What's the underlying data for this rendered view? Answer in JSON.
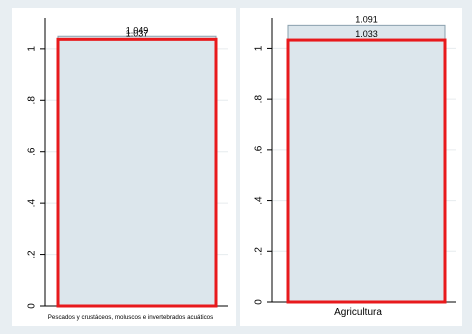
{
  "chart_data": [
    {
      "type": "bar",
      "categories": [
        "Pescados y crustáceos, moluscos e invertebrados acuáticos"
      ],
      "series": [
        {
          "values": [
            1.049
          ]
        },
        {
          "values": [
            1.037
          ]
        }
      ],
      "data_labels": [
        "1.049",
        "1.037"
      ],
      "ylim": [
        0,
        1.12
      ],
      "yticks": [
        0,
        0.2,
        0.4,
        0.6,
        0.8,
        1
      ],
      "ytick_labels": [
        "0",
        ".2",
        ".4",
        ".6",
        ".8",
        "1"
      ],
      "grid": true,
      "colors": {
        "bar_fill": "#dce6ec",
        "bar_stroke": "#8aa0ae",
        "highlight": "#e8191c"
      }
    },
    {
      "type": "bar",
      "categories": [
        "Agricultura"
      ],
      "series": [
        {
          "values": [
            1.091
          ]
        },
        {
          "values": [
            1.033
          ]
        }
      ],
      "data_labels": [
        "1.091",
        "1.033"
      ],
      "ylim": [
        0,
        1.12
      ],
      "yticks": [
        0,
        0.2,
        0.4,
        0.6,
        0.8,
        1
      ],
      "ytick_labels": [
        "0",
        ".2",
        ".4",
        ".6",
        ".8",
        "1"
      ],
      "grid": true,
      "colors": {
        "bar_fill": "#dce6ec",
        "bar_stroke": "#8aa0ae",
        "highlight": "#e8191c"
      }
    }
  ]
}
